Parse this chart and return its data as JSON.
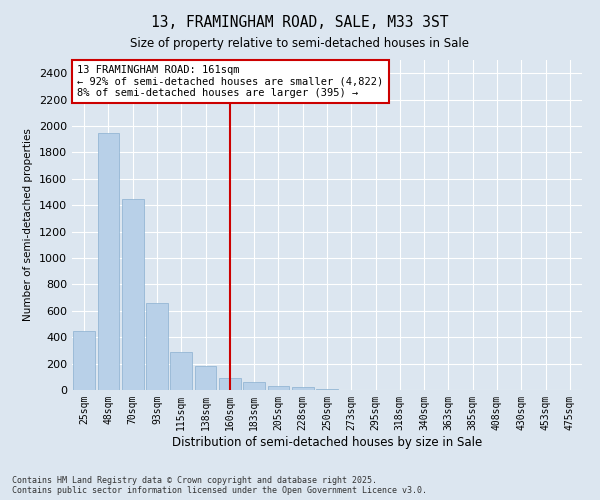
{
  "title": "13, FRAMINGHAM ROAD, SALE, M33 3ST",
  "subtitle": "Size of property relative to semi-detached houses in Sale",
  "xlabel": "Distribution of semi-detached houses by size in Sale",
  "ylabel": "Number of semi-detached properties",
  "bar_color": "#b8d0e8",
  "bar_edge_color": "#8ab0d0",
  "background_color": "#dce6f0",
  "fig_background_color": "#dce6f0",
  "grid_color": "#ffffff",
  "categories": [
    "25sqm",
    "48sqm",
    "70sqm",
    "93sqm",
    "115sqm",
    "138sqm",
    "160sqm",
    "183sqm",
    "205sqm",
    "228sqm",
    "250sqm",
    "273sqm",
    "295sqm",
    "318sqm",
    "340sqm",
    "363sqm",
    "385sqm",
    "408sqm",
    "430sqm",
    "453sqm",
    "475sqm"
  ],
  "values": [
    450,
    1950,
    1450,
    660,
    290,
    180,
    90,
    60,
    30,
    20,
    10,
    0,
    0,
    0,
    0,
    0,
    0,
    0,
    0,
    0,
    0
  ],
  "ylim": [
    0,
    2500
  ],
  "yticks": [
    0,
    200,
    400,
    600,
    800,
    1000,
    1200,
    1400,
    1600,
    1800,
    2000,
    2200,
    2400
  ],
  "property_line_index": 6,
  "property_label": "13 FRAMINGHAM ROAD: 161sqm",
  "annotation_line1": "← 92% of semi-detached houses are smaller (4,822)",
  "annotation_line2": "8% of semi-detached houses are larger (395) →",
  "annotation_box_color": "#cc0000",
  "footnote1": "Contains HM Land Registry data © Crown copyright and database right 2025.",
  "footnote2": "Contains public sector information licensed under the Open Government Licence v3.0."
}
